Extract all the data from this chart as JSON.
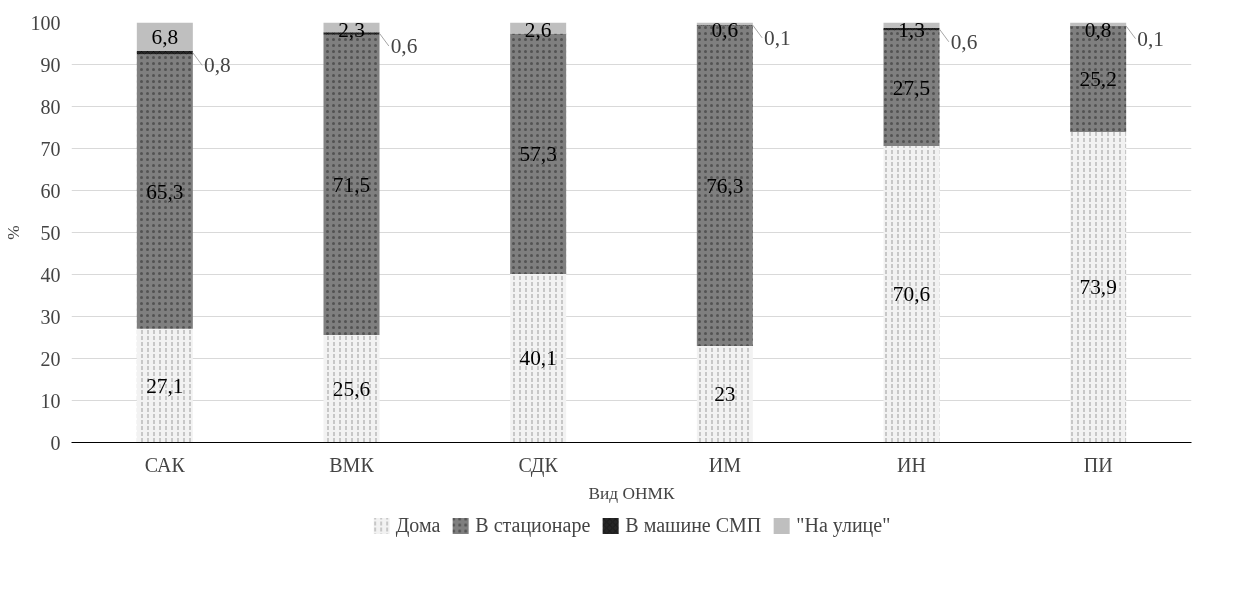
{
  "chart_data": {
    "type": "bar",
    "stacked": true,
    "xlabel": "Вид ОНМК",
    "ylabel": "%",
    "categories": [
      "САК",
      "ВМК",
      "СДК",
      "ИМ",
      "ИН",
      "ПИ"
    ],
    "series": [
      {
        "name": "Дома",
        "color": "#f2f2f2",
        "values": [
          27.1,
          25.6,
          40.1,
          23,
          70.6,
          73.9
        ],
        "value_labels": [
          "27,1",
          "25,6",
          "40,1",
          "23",
          "70,6",
          "73,9"
        ]
      },
      {
        "name": "В стационаре",
        "color": "#7f7f7f",
        "values": [
          65.3,
          71.5,
          57.3,
          76.3,
          27.5,
          25.2
        ],
        "value_labels": [
          "65,3",
          "71,5",
          "57,3",
          "76,3",
          "27,5",
          "25,2"
        ]
      },
      {
        "name": "В машине СМП",
        "color": "#262626",
        "values": [
          0.8,
          0.6,
          null,
          0.1,
          0.6,
          0.1
        ],
        "value_labels": [
          "0,8",
          "0,6",
          null,
          "0,1",
          "0,6",
          "0,1"
        ]
      },
      {
        "name": "\"На улице\"",
        "color": "#bfbfbf",
        "values": [
          6.8,
          2.3,
          2.6,
          0.6,
          1.3,
          0.8
        ],
        "value_labels": [
          "6,8",
          "2,3",
          "2,6",
          "0,6",
          "1,3",
          "0,8"
        ]
      }
    ],
    "ylim": [
      0,
      100
    ],
    "yticks": [
      0,
      10,
      20,
      30,
      40,
      50,
      60,
      70,
      80,
      90,
      100
    ],
    "grid": "y",
    "legend": "bottom"
  }
}
